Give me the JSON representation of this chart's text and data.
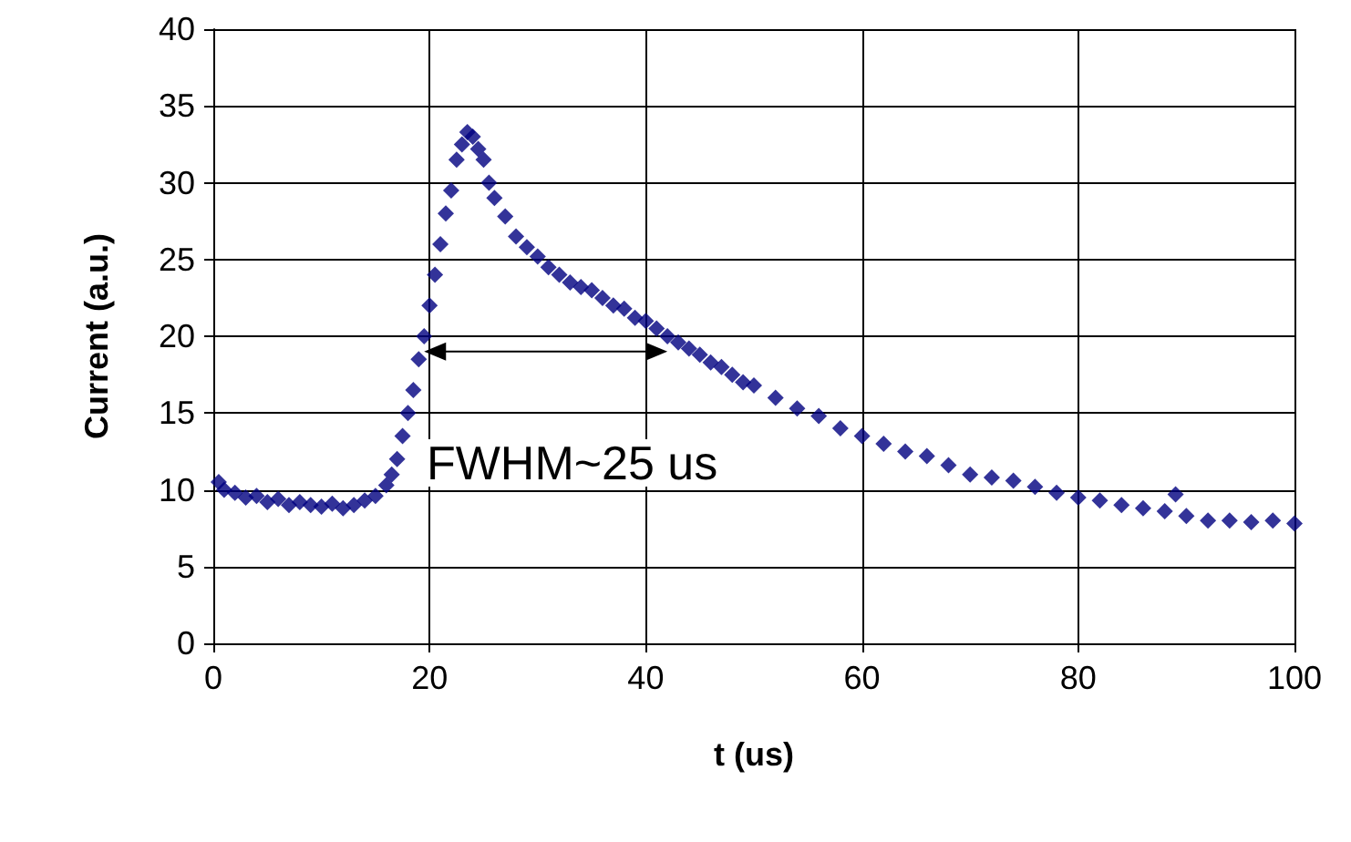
{
  "chart_data": {
    "type": "scatter",
    "xlabel": "t (us)",
    "ylabel": "Current (a.u.)",
    "xlim": [
      0,
      100
    ],
    "ylim": [
      0,
      40
    ],
    "xticks": [
      0,
      20,
      40,
      60,
      80,
      100
    ],
    "yticks": [
      0,
      5,
      10,
      15,
      20,
      25,
      30,
      35,
      40
    ],
    "grid": true,
    "marker": "diamond",
    "annotations": [
      "FWHM~25 us"
    ],
    "series": [
      {
        "color": "#000080",
        "x": [
          0.5,
          1,
          2,
          3,
          4,
          5,
          6,
          7,
          8,
          9,
          10,
          11,
          12,
          13,
          14,
          15,
          16,
          16.5,
          17,
          17.5,
          18,
          18.5,
          19,
          19.5,
          20,
          20.5,
          21,
          21.5,
          22,
          22.5,
          23,
          23.5,
          24,
          24.5,
          25,
          25.5,
          26,
          27,
          28,
          29,
          30,
          31,
          32,
          33,
          34,
          35,
          36,
          37,
          38,
          39,
          40,
          41,
          42,
          43,
          44,
          45,
          46,
          47,
          48,
          49,
          50,
          52,
          54,
          56,
          58,
          60,
          62,
          64,
          66,
          68,
          70,
          72,
          74,
          76,
          78,
          80,
          82,
          84,
          86,
          88,
          89,
          90,
          92,
          94,
          96,
          98,
          100
        ],
        "values": [
          10.5,
          10,
          9.8,
          9.5,
          9.6,
          9.2,
          9.4,
          9,
          9.2,
          9,
          8.9,
          9.1,
          8.8,
          9,
          9.3,
          9.6,
          10.3,
          11,
          12,
          13.5,
          15,
          16.5,
          18.5,
          20,
          22,
          24,
          26,
          28,
          29.5,
          31.5,
          32.5,
          33.3,
          33,
          32.2,
          31.5,
          30,
          29,
          27.8,
          26.5,
          25.8,
          25.2,
          24.5,
          24,
          23.5,
          23.2,
          23,
          22.5,
          22,
          21.8,
          21.2,
          21,
          20.5,
          20,
          19.6,
          19.2,
          18.8,
          18.3,
          18,
          17.5,
          17,
          16.8,
          16,
          15.3,
          14.8,
          14,
          13.5,
          13,
          12.5,
          12.2,
          11.6,
          11,
          10.8,
          10.6,
          10.2,
          9.8,
          9.5,
          9.3,
          9,
          8.8,
          8.6,
          9.7,
          8.3,
          8,
          8,
          7.9,
          8,
          7.8
        ]
      }
    ]
  }
}
